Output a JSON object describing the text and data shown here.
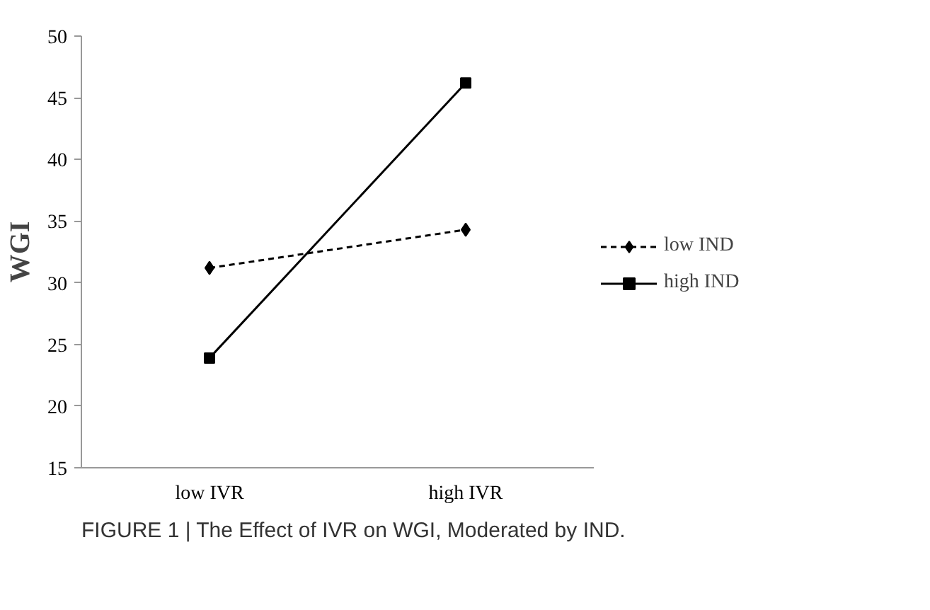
{
  "chart_data": {
    "type": "line",
    "ylabel": "WGI",
    "categories": [
      "low IVR",
      "high IVR"
    ],
    "ylim": [
      15,
      50
    ],
    "yticks": [
      15,
      20,
      25,
      30,
      35,
      40,
      45,
      50
    ],
    "grid": false,
    "legend": "right",
    "series": [
      {
        "name": "low IND",
        "color": "#000000",
        "values": [
          31.2,
          34.3
        ],
        "marker": "diamond",
        "line_style": "dashed"
      },
      {
        "name": "high IND",
        "color": "#000000",
        "values": [
          23.9,
          46.2
        ],
        "marker": "square",
        "line_style": "solid"
      }
    ],
    "annotations": [
      "FIGURE 1 | The Effect of IVR on WGI, Moderated by IND."
    ]
  }
}
